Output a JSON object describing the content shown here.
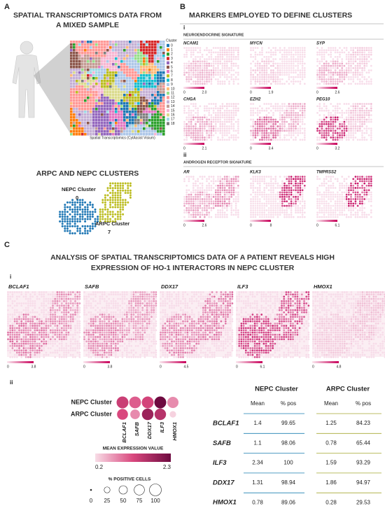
{
  "panel_a": {
    "letter": "A",
    "title_lines": [
      "SPATIAL TRANSCRIPTOMICS DATA FROM",
      "A MIXED SAMPLE"
    ],
    "legend_title": "Cluster",
    "clusters": [
      0,
      1,
      2,
      3,
      4,
      5,
      6,
      7,
      8,
      9,
      10,
      11,
      12,
      13,
      14,
      15,
      16,
      17,
      18
    ],
    "cluster_colors": [
      "#1f77b4",
      "#ff7f0e",
      "#2ca02c",
      "#d62728",
      "#9467bd",
      "#8c564b",
      "#e377c2",
      "#bcbd22",
      "#17becf",
      "#aec7e8",
      "#ffbb78",
      "#98df8a",
      "#ff9896",
      "#c5b0d5",
      "#c49c94",
      "#f7b6d2",
      "#dbdb8d",
      "#9edae5",
      "#7f7f7f"
    ],
    "caption": "Spatial Transcriptomics (CytAssist Visium)",
    "subtitle": "ARPC AND NEPC CLUSTERS",
    "nepc_label": "NEPC Cluster",
    "nepc_id": 0,
    "arpc_label": "ARPC Cluster",
    "arpc_id": 7
  },
  "panel_b": {
    "letter": "B",
    "title": "MARKERS EMPLOYED TO DEFINE CLUSTERS",
    "sections": [
      {
        "numeral": "i",
        "heading": "NEUROENDOCRINE SIGNATURE",
        "maps": [
          {
            "gene": "NCAM1",
            "scale": [
              "0",
              "2.0"
            ]
          },
          {
            "gene": "MYCN",
            "scale": [
              "0",
              "1.9"
            ]
          },
          {
            "gene": "SYP",
            "scale": [
              "0",
              "2.6"
            ]
          },
          {
            "gene": "CHGA",
            "scale": [
              "0",
              "2.1"
            ]
          },
          {
            "gene": "EZH2",
            "scale": [
              "0",
              "3.4"
            ]
          },
          {
            "gene": "PEG10",
            "scale": [
              "0",
              "3.2"
            ]
          }
        ]
      },
      {
        "numeral": "ii",
        "heading": "ANDROGEN RECEPTOR SIGNATURE",
        "maps": [
          {
            "gene": "AR",
            "scale": [
              "0",
              "2.6"
            ]
          },
          {
            "gene": "KLK3",
            "scale": [
              "0",
              "8"
            ]
          },
          {
            "gene": "TMPRSS2",
            "scale": [
              "0",
              "6.1"
            ]
          }
        ]
      }
    ]
  },
  "panel_c": {
    "letter": "C",
    "title_lines": [
      "ANALYSIS OF SPATIAL TRANSCRIPTOMICS DATA OF A PATIENT REVEALS HIGH",
      "EXPRESSION OF HO-1 INTERACTORS IN NEPC CLUSTER"
    ],
    "part_i": "i",
    "maps": [
      {
        "gene": "BCLAF1",
        "scale": [
          "0",
          "3.8"
        ]
      },
      {
        "gene": "SAFB",
        "scale": [
          "0",
          "3.8"
        ]
      },
      {
        "gene": "DDX17",
        "scale": [
          "0",
          "4.5"
        ]
      },
      {
        "gene": "ILF3",
        "scale": [
          "0",
          "6.1"
        ]
      },
      {
        "gene": "HMOX1",
        "scale": [
          "0",
          "4.8"
        ]
      }
    ],
    "part_ii": "ii",
    "dot_plot": {
      "row_labels": [
        "NEPC Cluster",
        "ARPC Cluster"
      ],
      "row_colors": [
        "#1b7fb0",
        "#a6a832"
      ],
      "genes": [
        "BCLAF1",
        "SAFB",
        "DDX17",
        "ILF3",
        "HMOX1"
      ],
      "color_title": "MEAN EXPRESSION VALUE",
      "color_range": [
        0.2,
        2.3
      ],
      "size_title": "% POSITIVE CELLS",
      "size_ticks": [
        0,
        25,
        50,
        75,
        100
      ]
    },
    "table": {
      "groups": [
        "NEPC Cluster",
        "ARPC Cluster"
      ],
      "columns": [
        "Mean",
        "% pos",
        "Mean",
        "% pos"
      ],
      "rows": [
        [
          "BCLAF1",
          1.4,
          99.65,
          1.25,
          84.23
        ],
        [
          "SAFB",
          1.1,
          98.06,
          0.78,
          65.44
        ],
        [
          "ILF3",
          2.34,
          100,
          1.59,
          93.29
        ],
        [
          "DDX17",
          1.31,
          98.94,
          1.86,
          94.97
        ],
        [
          "HMOX1",
          0.78,
          89.06,
          0.28,
          29.53
        ]
      ]
    }
  }
}
